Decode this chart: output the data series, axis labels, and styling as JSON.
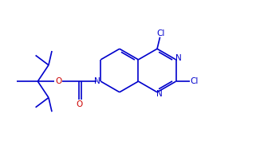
{
  "bg_color": "#ffffff",
  "bond_color": "#0000cc",
  "N_color": "#0000cc",
  "O_color": "#cc0000",
  "Cl_color": "#0000cc",
  "lw": 1.2,
  "fig_width": 3.26,
  "fig_height": 1.77,
  "dpi": 100,
  "xlim": [
    0,
    10.5
  ],
  "ylim": [
    0,
    6.5
  ]
}
